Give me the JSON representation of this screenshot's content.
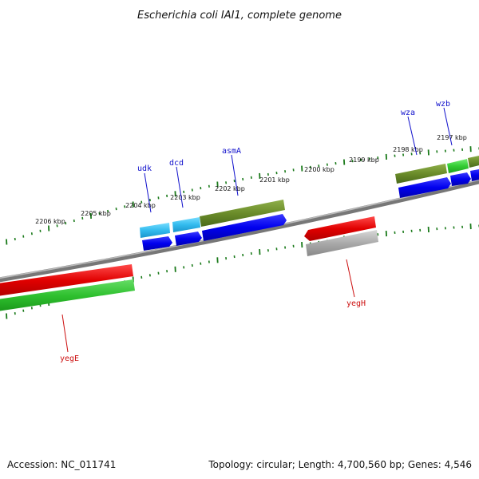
{
  "title": "Escherichia coli IAI1, complete genome",
  "accession_text": "Accession: NC_011741",
  "summary_text": "Topology: circular; Length: 4,700,560 bp; Genes: 4,546",
  "colors": {
    "backbone": "#8a8a8a",
    "ticks": "#1a7a1a",
    "forward_gene": "#6b8c2a",
    "forward_cds": "#0000ee",
    "reverse_gene": "#e00000",
    "reverse_cds": "#2ec02e",
    "trna": "#33bbee",
    "pseudo": "#aaaaaa",
    "forward_label": "#1010cc",
    "reverse_label": "#cc1010"
  },
  "ticks": [
    {
      "label": "2206 kbp"
    },
    {
      "label": "2205 kbp"
    },
    {
      "label": "2204 kbp"
    },
    {
      "label": "2203 kbp"
    },
    {
      "label": "2202 kbp"
    },
    {
      "label": "2201 kbp"
    },
    {
      "label": "2200 kbp"
    },
    {
      "label": "2199 kbp"
    },
    {
      "label": "2198 kbp"
    },
    {
      "label": "2197 kbp"
    }
  ],
  "forward_labels": [
    "udk",
    "dcd",
    "asmA",
    "wza",
    "wzb"
  ],
  "reverse_labels": [
    "yegE",
    "yegH"
  ]
}
